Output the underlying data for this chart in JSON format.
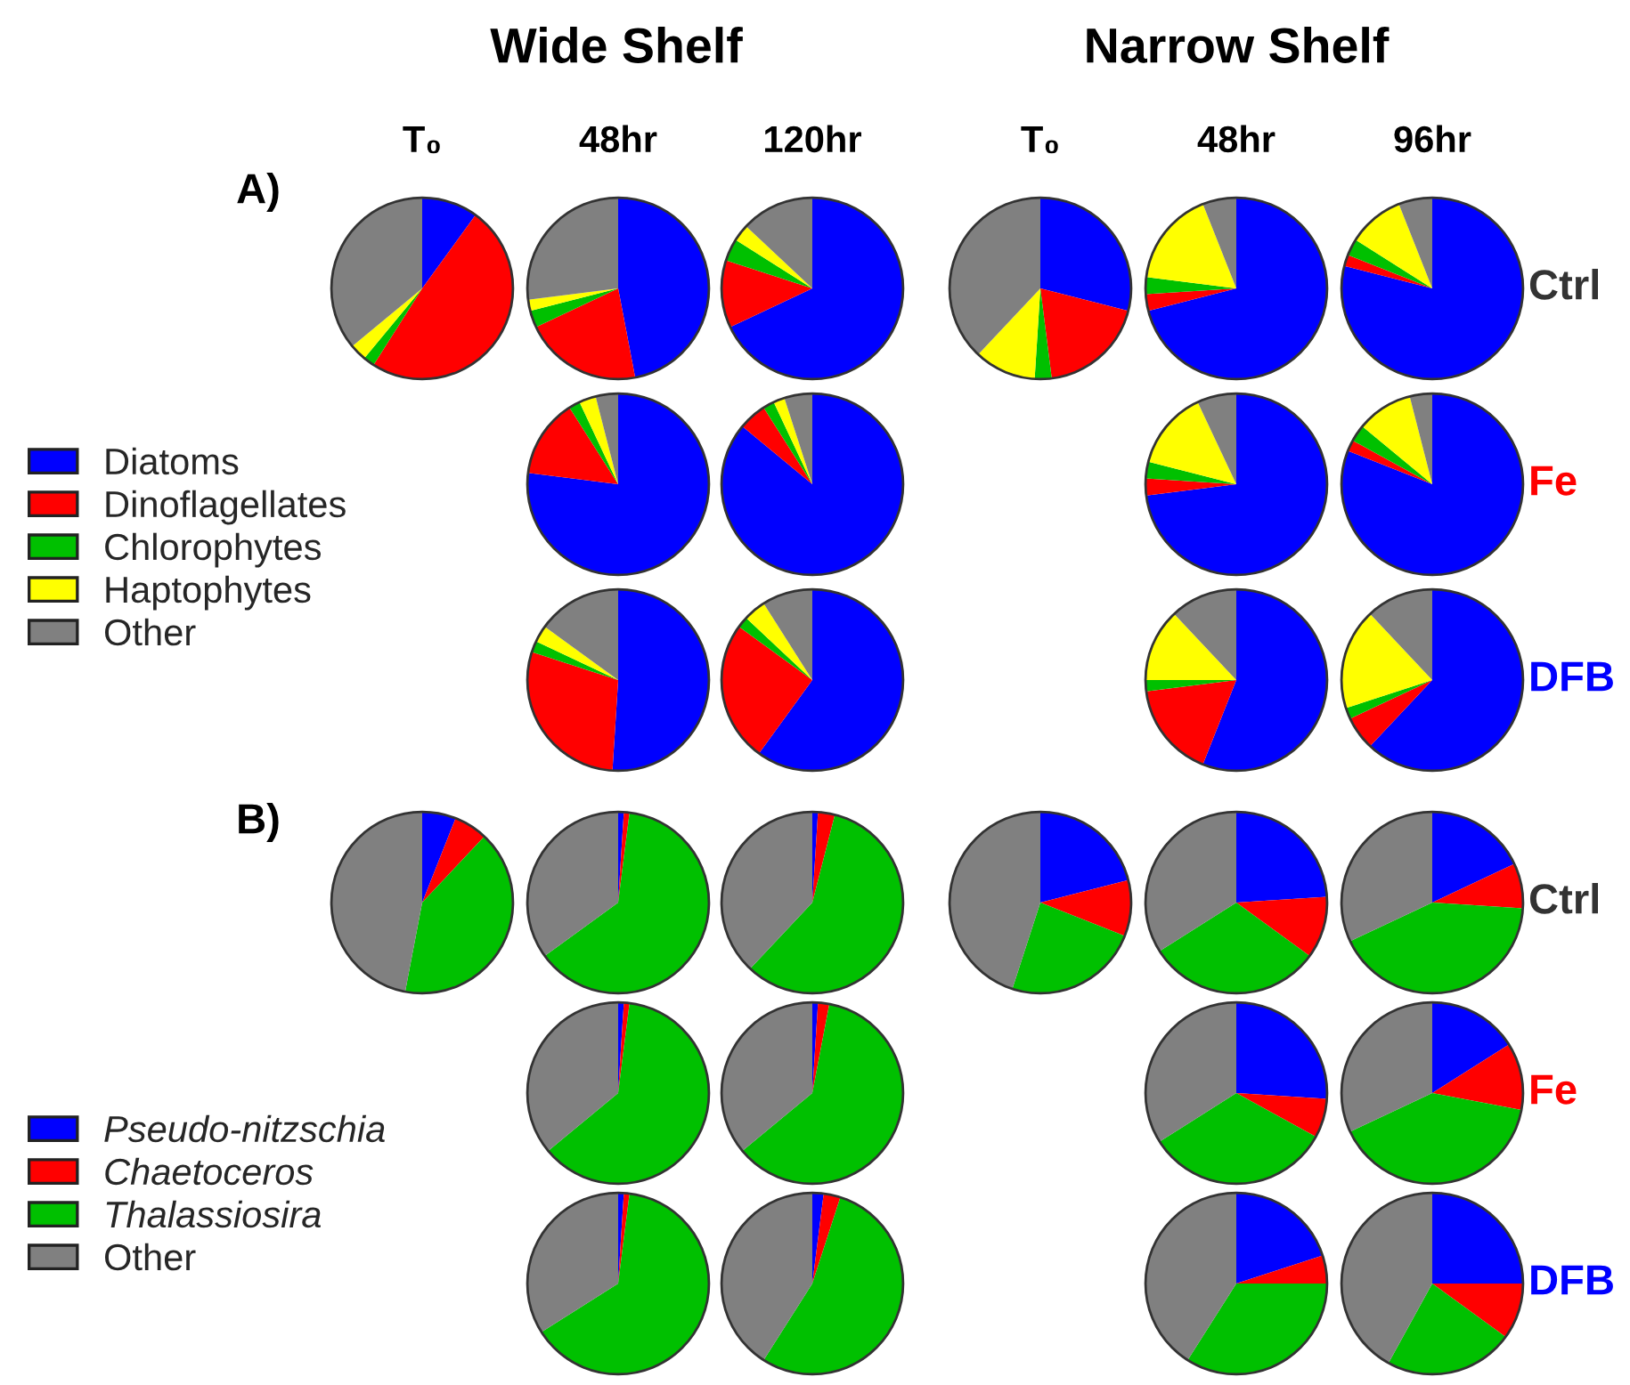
{
  "chart_data": [
    {
      "type": "other",
      "annotations": [
        "Wide Shelf",
        "Narrow Shelf",
        "T₀",
        "48hr",
        "120hr",
        "T₀",
        "48hr",
        "96hr",
        "A)",
        "B)",
        "Ctrl",
        "Fe",
        "DFB",
        "Ctrl",
        "Fe",
        "DFB"
      ]
    },
    {
      "type": "pie",
      "legend": "left",
      "categories": [
        "Diatoms",
        "Dinoflagellates",
        "Chlorophytes",
        "Haptophytes",
        "Other"
      ],
      "colors": [
        "#0000ff",
        "#ff0000",
        "#00c000",
        "#ffff00",
        "#808080"
      ],
      "values": [
        10,
        49,
        2,
        3,
        36
      ]
    },
    {
      "type": "pie",
      "categories": [
        null,
        null,
        null,
        null,
        null
      ],
      "colors": [
        "#0000ff",
        "#ff0000",
        "#00c000",
        "#ffff00",
        "#808080"
      ],
      "values": [
        47,
        21,
        3,
        2,
        27
      ]
    },
    {
      "type": "pie",
      "categories": [
        null,
        null,
        null,
        null,
        null
      ],
      "colors": [
        "#0000ff",
        "#ff0000",
        "#00c000",
        "#ffff00",
        "#808080"
      ],
      "values": [
        68,
        12,
        4,
        3,
        13
      ]
    },
    {
      "type": "pie",
      "categories": [
        null,
        null,
        null,
        null,
        null
      ],
      "colors": [
        "#0000ff",
        "#ff0000",
        "#00c000",
        "#ffff00",
        "#808080"
      ],
      "values": [
        29,
        19,
        3,
        11,
        38
      ]
    },
    {
      "type": "pie",
      "categories": [
        null,
        null,
        null,
        null,
        null
      ],
      "colors": [
        "#0000ff",
        "#ff0000",
        "#00c000",
        "#ffff00",
        "#808080"
      ],
      "values": [
        71,
        3,
        3,
        17,
        6
      ]
    },
    {
      "type": "pie",
      "categories": [
        null,
        null,
        null,
        null,
        null
      ],
      "colors": [
        "#0000ff",
        "#ff0000",
        "#00c000",
        "#ffff00",
        "#808080"
      ],
      "values": [
        79,
        2,
        3,
        10,
        6
      ]
    },
    {
      "type": "pie",
      "categories": [
        null,
        null,
        null,
        null,
        null
      ],
      "colors": [
        "#0000ff",
        "#ff0000",
        "#00c000",
        "#ffff00",
        "#808080"
      ],
      "values": [
        77,
        14,
        2,
        3,
        4
      ]
    },
    {
      "type": "pie",
      "categories": [
        null,
        null,
        null,
        null,
        null
      ],
      "colors": [
        "#0000ff",
        "#ff0000",
        "#00c000",
        "#ffff00",
        "#808080"
      ],
      "values": [
        86,
        5,
        2,
        2,
        5
      ]
    },
    {
      "type": "pie",
      "categories": [
        null,
        null,
        null,
        null,
        null
      ],
      "colors": [
        "#0000ff",
        "#ff0000",
        "#00c000",
        "#ffff00",
        "#808080"
      ],
      "values": [
        73,
        3,
        3,
        14,
        7
      ]
    },
    {
      "type": "pie",
      "categories": [
        null,
        null,
        null,
        null,
        null
      ],
      "colors": [
        "#0000ff",
        "#ff0000",
        "#00c000",
        "#ffff00",
        "#808080"
      ],
      "values": [
        81,
        2,
        3,
        10,
        4
      ]
    },
    {
      "type": "pie",
      "categories": [
        null,
        null,
        null,
        null,
        null
      ],
      "colors": [
        "#0000ff",
        "#ff0000",
        "#00c000",
        "#ffff00",
        "#808080"
      ],
      "values": [
        51,
        29,
        2,
        3,
        15
      ]
    },
    {
      "type": "pie",
      "categories": [
        null,
        null,
        null,
        null,
        null
      ],
      "colors": [
        "#0000ff",
        "#ff0000",
        "#00c000",
        "#ffff00",
        "#808080"
      ],
      "values": [
        60,
        25,
        2,
        4,
        9
      ]
    },
    {
      "type": "pie",
      "categories": [
        null,
        null,
        null,
        null,
        null
      ],
      "colors": [
        "#0000ff",
        "#ff0000",
        "#00c000",
        "#ffff00",
        "#808080"
      ],
      "values": [
        56,
        17,
        2,
        13,
        12
      ]
    },
    {
      "type": "pie",
      "categories": [
        null,
        null,
        null,
        null,
        null
      ],
      "colors": [
        "#0000ff",
        "#ff0000",
        "#00c000",
        "#ffff00",
        "#808080"
      ],
      "values": [
        62,
        6,
        2,
        18,
        12
      ]
    },
    {
      "type": "pie",
      "legend": "left",
      "categories": [
        "Pseudo-nitzschia",
        "Chaetoceros",
        "Thalassiosira",
        "Other"
      ],
      "colors": [
        "#0000ff",
        "#ff0000",
        "#00c000",
        "#808080"
      ],
      "values": [
        6,
        6,
        41,
        47
      ]
    },
    {
      "type": "pie",
      "categories": [
        null,
        null,
        null,
        null
      ],
      "colors": [
        "#0000ff",
        "#ff0000",
        "#00c000",
        "#808080"
      ],
      "values": [
        1,
        1,
        63,
        35
      ]
    },
    {
      "type": "pie",
      "categories": [
        null,
        null,
        null,
        null
      ],
      "colors": [
        "#0000ff",
        "#ff0000",
        "#00c000",
        "#808080"
      ],
      "values": [
        1,
        3,
        58,
        38
      ]
    },
    {
      "type": "pie",
      "categories": [
        null,
        null,
        null,
        null
      ],
      "colors": [
        "#0000ff",
        "#ff0000",
        "#00c000",
        "#808080"
      ],
      "values": [
        21,
        10,
        24,
        45
      ]
    },
    {
      "type": "pie",
      "categories": [
        null,
        null,
        null,
        null
      ],
      "colors": [
        "#0000ff",
        "#ff0000",
        "#00c000",
        "#808080"
      ],
      "values": [
        24,
        11,
        31,
        34
      ]
    },
    {
      "type": "pie",
      "categories": [
        null,
        null,
        null,
        null
      ],
      "colors": [
        "#0000ff",
        "#ff0000",
        "#00c000",
        "#808080"
      ],
      "values": [
        18,
        8,
        42,
        32
      ]
    },
    {
      "type": "pie",
      "categories": [
        null,
        null,
        null,
        null
      ],
      "colors": [
        "#0000ff",
        "#ff0000",
        "#00c000",
        "#808080"
      ],
      "values": [
        1,
        1,
        62,
        36
      ]
    },
    {
      "type": "pie",
      "categories": [
        null,
        null,
        null,
        null
      ],
      "colors": [
        "#0000ff",
        "#ff0000",
        "#00c000",
        "#808080"
      ],
      "values": [
        1,
        2,
        61,
        36
      ]
    },
    {
      "type": "pie",
      "categories": [
        null,
        null,
        null,
        null
      ],
      "colors": [
        "#0000ff",
        "#ff0000",
        "#00c000",
        "#808080"
      ],
      "values": [
        26,
        7,
        33,
        34
      ]
    },
    {
      "type": "pie",
      "categories": [
        null,
        null,
        null,
        null
      ],
      "colors": [
        "#0000ff",
        "#ff0000",
        "#00c000",
        "#808080"
      ],
      "values": [
        16,
        12,
        40,
        32
      ]
    },
    {
      "type": "pie",
      "categories": [
        null,
        null,
        null,
        null
      ],
      "colors": [
        "#0000ff",
        "#ff0000",
        "#00c000",
        "#808080"
      ],
      "values": [
        1,
        1,
        64,
        34
      ]
    },
    {
      "type": "pie",
      "categories": [
        null,
        null,
        null,
        null
      ],
      "colors": [
        "#0000ff",
        "#ff0000",
        "#00c000",
        "#808080"
      ],
      "values": [
        2,
        3,
        54,
        41
      ]
    },
    {
      "type": "pie",
      "categories": [
        null,
        null,
        null,
        null
      ],
      "colors": [
        "#0000ff",
        "#ff0000",
        "#00c000",
        "#808080"
      ],
      "values": [
        20,
        5,
        34,
        41
      ]
    },
    {
      "type": "pie",
      "categories": [
        null,
        null,
        null,
        null
      ],
      "colors": [
        "#0000ff",
        "#ff0000",
        "#00c000",
        "#808080"
      ],
      "values": [
        25,
        10,
        23,
        42
      ]
    }
  ]
}
